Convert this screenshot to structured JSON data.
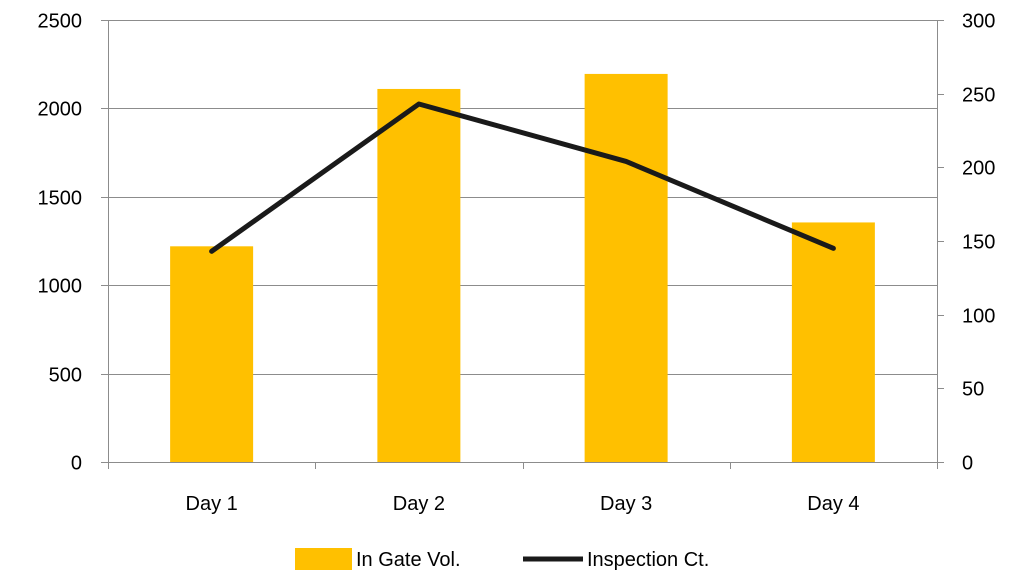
{
  "chart_data": {
    "type": "bar",
    "categories": [
      "Day 1",
      "Day 2",
      "Day 3",
      "Day 4"
    ],
    "series": [
      {
        "name": "In Gate  Vol.",
        "type": "bar",
        "axis": "left",
        "values": [
          1220,
          2110,
          2195,
          1355
        ],
        "color": "#FFC000"
      },
      {
        "name": "Inspection Ct.",
        "type": "line",
        "axis": "right",
        "values": [
          143,
          243,
          204,
          145
        ],
        "color": "#1a1a1a"
      }
    ],
    "y_left": {
      "ylim": [
        0,
        2500
      ],
      "ticks": [
        "0",
        "500",
        "1000",
        "1500",
        "2000",
        "2500"
      ]
    },
    "y_right": {
      "ylim": [
        0,
        300
      ],
      "ticks": [
        "0",
        "50",
        "100",
        "150",
        "200",
        "250",
        "300"
      ]
    },
    "grid": true,
    "legend_position": "bottom",
    "title": "",
    "xlabel": "",
    "ylabel": ""
  }
}
